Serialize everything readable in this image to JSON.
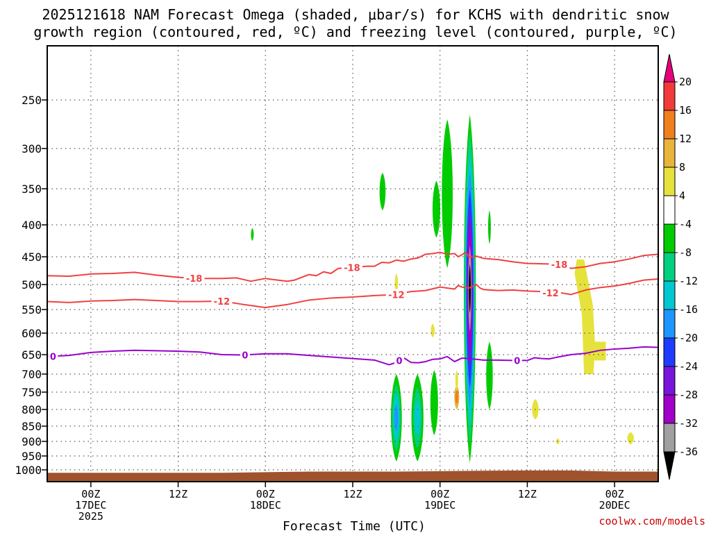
{
  "chart_data": {
    "type": "heatmap",
    "title_line1": "2025121618 NAM Forecast Omega (shaded, μbar/s) for KCHS with dendritic snow",
    "title_line2": "growth region (contoured, red, ºC) and freezing level (contoured, purple, ºC)",
    "xlabel": "Forecast Time (UTC)",
    "credit": "coolwx.com/models",
    "x_range_hours": [
      -6,
      78
    ],
    "y_range_hpa": [
      1020,
      195
    ],
    "pressure_ticks": [
      250,
      300,
      350,
      400,
      450,
      500,
      550,
      600,
      650,
      700,
      750,
      800,
      850,
      900,
      950,
      1000
    ],
    "time_ticks": [
      {
        "hour": 0,
        "lines": [
          "00Z",
          "17DEC",
          "2025"
        ]
      },
      {
        "hour": 12,
        "lines": [
          "12Z"
        ]
      },
      {
        "hour": 24,
        "lines": [
          "00Z",
          "18DEC"
        ]
      },
      {
        "hour": 36,
        "lines": [
          "12Z"
        ]
      },
      {
        "hour": 48,
        "lines": [
          "00Z",
          "19DEC"
        ]
      },
      {
        "hour": 60,
        "lines": [
          "12Z"
        ]
      },
      {
        "hour": 72,
        "lines": [
          "00Z",
          "20DEC"
        ]
      }
    ],
    "colorbar": {
      "labels": [
        "20",
        "16",
        "12",
        "8",
        "4",
        "-4",
        "-8",
        "-12",
        "-16",
        "-20",
        "-24",
        "-28",
        "-32",
        "-36"
      ],
      "bins": [
        {
          "range": [
            20,
            999
          ],
          "color": "#e6007e"
        },
        {
          "range": [
            16,
            20
          ],
          "color": "#f23a3a"
        },
        {
          "range": [
            12,
            16
          ],
          "color": "#f07f1e"
        },
        {
          "range": [
            8,
            12
          ],
          "color": "#e8b43a"
        },
        {
          "range": [
            4,
            8
          ],
          "color": "#e6e23c"
        },
        {
          "range": [
            -4,
            4
          ],
          "color": "#ffffff"
        },
        {
          "range": [
            -8,
            -4
          ],
          "color": "#00cc00"
        },
        {
          "range": [
            -12,
            -8
          ],
          "color": "#00d080"
        },
        {
          "range": [
            -16,
            -12
          ],
          "color": "#00c8d2"
        },
        {
          "range": [
            -20,
            -16
          ],
          "color": "#1e96ff"
        },
        {
          "range": [
            -24,
            -20
          ],
          "color": "#1e3cff"
        },
        {
          "range": [
            -28,
            -24
          ],
          "color": "#7814dc"
        },
        {
          "range": [
            -32,
            -28
          ],
          "color": "#a000c8"
        },
        {
          "range": [
            -36,
            -32
          ],
          "color": "#a0a0a0"
        },
        {
          "range": [
            -999,
            -36
          ],
          "color": "#000000"
        }
      ]
    },
    "omega_blobs": [
      {
        "hour": 22.2,
        "p_top": 405,
        "p_bot": 425,
        "hw": 0.25,
        "values": [
          -6
        ]
      },
      {
        "hour": 40.1,
        "p_top": 330,
        "p_bot": 380,
        "hw": 0.55,
        "values": [
          -6
        ]
      },
      {
        "hour": 42.0,
        "p_top": 700,
        "p_bot": 970,
        "hw": 1.0,
        "values": [
          -6,
          -11,
          -15,
          -18
        ]
      },
      {
        "hour": 44.9,
        "p_top": 700,
        "p_bot": 970,
        "hw": 1.1,
        "values": [
          -6,
          -11,
          -15
        ]
      },
      {
        "hour": 49.0,
        "p_top": 270,
        "p_bot": 470,
        "hw": 1.0,
        "values": [
          -6
        ]
      },
      {
        "hour": 47.5,
        "p_top": 340,
        "p_bot": 420,
        "hw": 0.7,
        "values": [
          -6
        ]
      },
      {
        "hour": 47.2,
        "p_top": 690,
        "p_bot": 880,
        "hw": 0.7,
        "values": [
          -6
        ]
      },
      {
        "hour": 52.1,
        "p_top": 265,
        "p_bot": 975,
        "hw": 1.1,
        "values": [
          -6,
          -11,
          -15,
          -19,
          -23,
          -27,
          -31,
          -35,
          -40
        ]
      },
      {
        "hour": 54.8,
        "p_top": 620,
        "p_bot": 800,
        "hw": 0.6,
        "values": [
          -6
        ]
      },
      {
        "hour": 54.8,
        "p_top": 380,
        "p_bot": 430,
        "hw": 0.25,
        "values": [
          -6
        ]
      },
      {
        "hour": 50.3,
        "p_top": 730,
        "p_bot": 800,
        "hw": 0.45,
        "values": [
          9,
          14
        ]
      },
      {
        "hour": 50.3,
        "p_top": 690,
        "p_bot": 745,
        "hw": 0.25,
        "values": [
          6
        ]
      },
      {
        "hour": 42.0,
        "p_top": 480,
        "p_bot": 520,
        "hw": 0.3,
        "values": [
          6
        ]
      },
      {
        "hour": 47.0,
        "p_top": 580,
        "p_bot": 610,
        "hw": 0.35,
        "values": [
          6
        ]
      },
      {
        "hour": 61.1,
        "p_top": 770,
        "p_bot": 830,
        "hw": 0.6,
        "values": [
          6
        ]
      },
      {
        "hour": 64.2,
        "p_top": 890,
        "p_bot": 910,
        "hw": 0.3,
        "values": [
          6
        ]
      },
      {
        "hour": 74.2,
        "p_top": 870,
        "p_bot": 910,
        "hw": 0.6,
        "values": [
          6
        ]
      }
    ],
    "omega_band": {
      "values": [
        6
      ],
      "points": [
        [
          66.8,
          455
        ],
        [
          67.8,
          455
        ],
        [
          69.0,
          540
        ],
        [
          69.3,
          620
        ],
        [
          70.8,
          620
        ],
        [
          70.8,
          665
        ],
        [
          69.2,
          665
        ],
        [
          69.1,
          700
        ],
        [
          67.8,
          700
        ],
        [
          67.5,
          560
        ],
        [
          66.5,
          480
        ]
      ]
    },
    "terrain": {
      "color": "#a0522d",
      "points": [
        [
          -6,
          1010
        ],
        [
          18,
          1010
        ],
        [
          30,
          1006
        ],
        [
          42,
          1006
        ],
        [
          54,
          1003
        ],
        [
          60,
          1002
        ],
        [
          66,
          1002
        ],
        [
          72,
          1006
        ],
        [
          78,
          1006
        ]
      ]
    },
    "contours": [
      {
        "level": "-18",
        "color": "#f04040",
        "label_hours": [
          14.2,
          35.9,
          64.4
        ],
        "points": [
          [
            -6,
            484
          ],
          [
            -3,
            485
          ],
          [
            0,
            481
          ],
          [
            3,
            480
          ],
          [
            6,
            478
          ],
          [
            9,
            483
          ],
          [
            12,
            487
          ],
          [
            15,
            489
          ],
          [
            18,
            489
          ],
          [
            20,
            488
          ],
          [
            21,
            491
          ],
          [
            22,
            494
          ],
          [
            24,
            489
          ],
          [
            25,
            491
          ],
          [
            27,
            494
          ],
          [
            28,
            492
          ],
          [
            30,
            482
          ],
          [
            31,
            484
          ],
          [
            32,
            477
          ],
          [
            33,
            480
          ],
          [
            34,
            471
          ],
          [
            36,
            469
          ],
          [
            38,
            467
          ],
          [
            39,
            467
          ],
          [
            40,
            460
          ],
          [
            41,
            461
          ],
          [
            42,
            456
          ],
          [
            43,
            458
          ],
          [
            44,
            454
          ],
          [
            45,
            452
          ],
          [
            46,
            446
          ],
          [
            47,
            445
          ],
          [
            48,
            443
          ],
          [
            49,
            446
          ],
          [
            50,
            445
          ],
          [
            50.5,
            450
          ],
          [
            51,
            447
          ],
          [
            51.5,
            443
          ],
          [
            52,
            450
          ],
          [
            53,
            449
          ],
          [
            54,
            453
          ],
          [
            56,
            455
          ],
          [
            58,
            459
          ],
          [
            60,
            462
          ],
          [
            63,
            463
          ],
          [
            65,
            464
          ],
          [
            66,
            471
          ],
          [
            68,
            468
          ],
          [
            70,
            462
          ],
          [
            72,
            459
          ],
          [
            74,
            454
          ],
          [
            76,
            448
          ],
          [
            78,
            446
          ]
        ]
      },
      {
        "level": "-12",
        "color": "#f04040",
        "label_hours": [
          18.0,
          42.0,
          63.2
        ],
        "points": [
          [
            -6,
            534
          ],
          [
            -3,
            536
          ],
          [
            0,
            533
          ],
          [
            3,
            532
          ],
          [
            6,
            530
          ],
          [
            9,
            532
          ],
          [
            12,
            534
          ],
          [
            15,
            534
          ],
          [
            18,
            533
          ],
          [
            21,
            540
          ],
          [
            24,
            546
          ],
          [
            27,
            540
          ],
          [
            30,
            531
          ],
          [
            33,
            527
          ],
          [
            36,
            525
          ],
          [
            39,
            522
          ],
          [
            42,
            520
          ],
          [
            44,
            514
          ],
          [
            46,
            512
          ],
          [
            48,
            505
          ],
          [
            50,
            509
          ],
          [
            50.5,
            502
          ],
          [
            51,
            505
          ],
          [
            52,
            507
          ],
          [
            53,
            500
          ],
          [
            53.5,
            507
          ],
          [
            54,
            510
          ],
          [
            56,
            512
          ],
          [
            58,
            511
          ],
          [
            60,
            513
          ],
          [
            62,
            514
          ],
          [
            63,
            517
          ],
          [
            64,
            515
          ],
          [
            66,
            520
          ],
          [
            68,
            511
          ],
          [
            70,
            506
          ],
          [
            72,
            503
          ],
          [
            74,
            498
          ],
          [
            76,
            492
          ],
          [
            78,
            490
          ]
        ]
      },
      {
        "level": "0",
        "color": "#9900cc",
        "label_hours": [
          -5.2,
          21.2,
          42.4,
          58.6
        ],
        "points": [
          [
            -6,
            655
          ],
          [
            -3,
            652
          ],
          [
            0,
            645
          ],
          [
            3,
            642
          ],
          [
            6,
            640
          ],
          [
            9,
            641
          ],
          [
            12,
            642
          ],
          [
            15,
            644
          ],
          [
            18,
            650
          ],
          [
            21,
            651
          ],
          [
            24,
            648
          ],
          [
            27,
            648
          ],
          [
            30,
            652
          ],
          [
            33,
            656
          ],
          [
            36,
            660
          ],
          [
            39,
            664
          ],
          [
            41,
            676
          ],
          [
            42,
            670
          ],
          [
            43,
            658
          ],
          [
            44,
            670
          ],
          [
            45,
            671
          ],
          [
            46,
            668
          ],
          [
            47,
            662
          ],
          [
            48,
            661
          ],
          [
            49,
            655
          ],
          [
            50,
            668
          ],
          [
            51,
            659
          ],
          [
            52,
            660
          ],
          [
            53,
            662
          ],
          [
            54,
            664
          ],
          [
            56,
            664
          ],
          [
            58,
            665
          ],
          [
            60,
            665
          ],
          [
            61,
            658
          ],
          [
            62,
            660
          ],
          [
            63,
            661
          ],
          [
            64,
            657
          ],
          [
            66,
            650
          ],
          [
            68,
            647
          ],
          [
            70,
            640
          ],
          [
            72,
            637
          ],
          [
            74,
            635
          ],
          [
            76,
            632
          ],
          [
            78,
            633
          ]
        ]
      }
    ]
  }
}
